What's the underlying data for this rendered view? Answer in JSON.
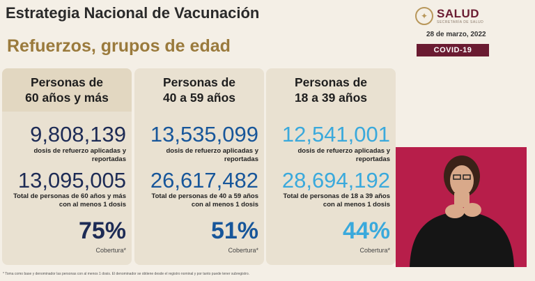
{
  "header": {
    "title": "Estrategia Nacional de Vacunación",
    "subtitle": "Refuerzos, grupos de edad",
    "logo_text": "SALUD",
    "logo_subtext": "SECRETARÍA DE SALUD",
    "date": "28 de marzo, 2022",
    "badge": "COVID-19"
  },
  "colors": {
    "title": "#2a2a2a",
    "subtitle": "#9a7a3c",
    "badge_bg": "#6a1b31",
    "card_bg": "#e9e1d1",
    "group_60_plus": "#1d2b55",
    "group_40_59": "#17569a",
    "group_18_39": "#3aa9dc",
    "video_bg": "#b71e4a"
  },
  "cards": [
    {
      "title_line1": "Personas de",
      "title_line2": "60 años y más",
      "doses": "9,808,139",
      "doses_label_1": "dosis de refuerzo aplicadas y",
      "doses_label_2": "reportadas",
      "total": "13,095,005",
      "total_label_1": "Total de personas de 60 años y más",
      "total_label_2": "con al menos 1 dosis",
      "coverage": "75%",
      "coverage_label": "Cobertura*"
    },
    {
      "title_line1": "Personas de",
      "title_line2": "40 a 59 años",
      "doses": "13,535,099",
      "doses_label_1": "dosis de refuerzo aplicadas y",
      "doses_label_2": "reportadas",
      "total": "26,617,482",
      "total_label_1": "Total de personas de 40 a 59 años",
      "total_label_2": "con al menos 1 dosis",
      "coverage": "51%",
      "coverage_label": "Cobertura*"
    },
    {
      "title_line1": "Personas de",
      "title_line2": "18 a 39 años",
      "doses": "12,541,001",
      "doses_label_1": "dosis de refuerzo aplicadas y",
      "doses_label_2": "reportadas",
      "total": "28,694,192",
      "total_label_1": "Total de personas de 18 a 39 años",
      "total_label_2": "con al menos 1 dosis",
      "coverage": "44%",
      "coverage_label": "Cobertura*"
    }
  ],
  "footnote": "* Toma como base y denominador las personas con al menos 1 dosis. El denominador se obtiene desde el registro nominal y por tanto puede tener subregistro."
}
